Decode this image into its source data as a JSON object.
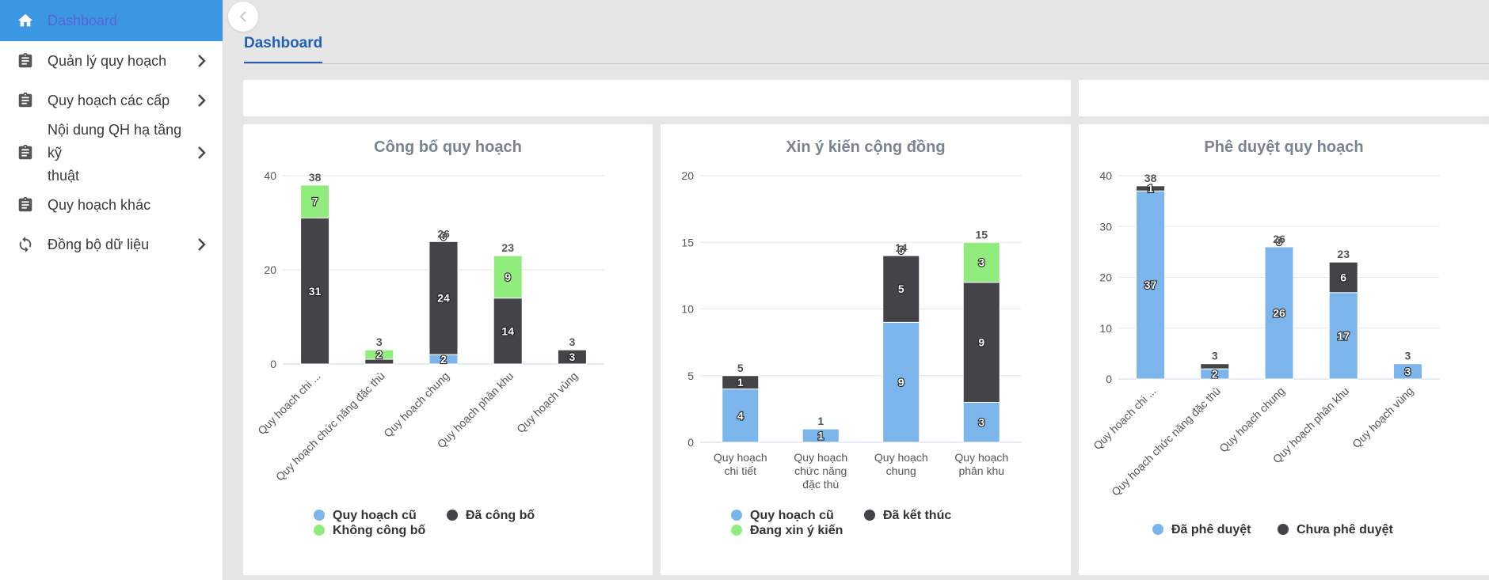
{
  "sidebar": {
    "items": [
      {
        "label": "Dashboard",
        "icon": "home-icon"
      },
      {
        "label": "Quản lý quy hoạch",
        "icon": "clipboard-icon"
      },
      {
        "label": "Quy hoạch các cấp",
        "icon": "clipboard-icon"
      },
      {
        "label_line1": "Nội dung QH hạ tầng kỹ",
        "label_line2": "thuật",
        "icon": "clipboard-icon"
      },
      {
        "label": "Quy hoạch khác",
        "icon": "clipboard-icon"
      },
      {
        "label": "Đồng bộ dữ liệu",
        "icon": "sync-icon"
      }
    ]
  },
  "header": {
    "tab": "Dashboard"
  },
  "colors": {
    "blue": "#7cb5ec",
    "dark": "#434348",
    "green": "#90ed7d",
    "accent": "#1f5fb8",
    "sidebar_active": "#3b97e3"
  },
  "chart_data": [
    {
      "type": "bar",
      "stacked": true,
      "title": "Công bố quy hoạch",
      "categories": [
        "Quy hoạch chi ...",
        "Quy hoạch chức năng đặc thù",
        "Quy hoạch chung",
        "Quy hoạch phân khu",
        "Quy hoạch vùng"
      ],
      "ylim": [
        0,
        40
      ],
      "yticks": [
        0,
        20,
        40
      ],
      "series": [
        {
          "name": "Quy hoạch cũ",
          "values": [
            0,
            0,
            2,
            0,
            0
          ]
        },
        {
          "name": "Đã công bố",
          "values": [
            31,
            1,
            24,
            14,
            3
          ]
        },
        {
          "name": "Không công bố",
          "values": [
            7,
            2,
            0,
            9,
            0
          ]
        }
      ],
      "segment_labels": [
        [
          "",
          "31",
          "7"
        ],
        [
          "",
          "",
          "2"
        ],
        [
          "2",
          "24",
          "0"
        ],
        [
          "",
          "14",
          "9"
        ],
        [
          "",
          "3",
          ""
        ]
      ],
      "totals": [
        38,
        3,
        26,
        23,
        3
      ],
      "legend_placement": "bottom"
    },
    {
      "type": "bar",
      "stacked": true,
      "title": "Xin ý kiến cộng đồng",
      "categories": [
        "Quy hoạch chi tiết",
        "Quy hoạch chức năng đặc thù",
        "Quy hoạch chung",
        "Quy hoạch phân khu"
      ],
      "category_lines": [
        [
          "Quy hoạch",
          "chi tiết"
        ],
        [
          "Quy hoạch",
          "chức năng",
          "đặc thù"
        ],
        [
          "Quy hoạch",
          "chung"
        ],
        [
          "Quy hoạch",
          "phân khu"
        ]
      ],
      "ylim": [
        0,
        20
      ],
      "yticks": [
        0,
        5,
        10,
        15,
        20
      ],
      "series": [
        {
          "name": "Quy hoạch cũ",
          "values": [
            4,
            1,
            9,
            3
          ]
        },
        {
          "name": "Đã kết thúc",
          "values": [
            1,
            0,
            5,
            9
          ]
        },
        {
          "name": "Đang xin ý kiến",
          "values": [
            0,
            0,
            0,
            3
          ]
        }
      ],
      "segment_labels": [
        [
          "4",
          "1",
          ""
        ],
        [
          "1",
          "",
          ""
        ],
        [
          "9",
          "5",
          "0"
        ],
        [
          "3",
          "9",
          "3"
        ]
      ],
      "totals": [
        5,
        1,
        14,
        15
      ],
      "legend_placement": "bottom"
    },
    {
      "type": "bar",
      "stacked": true,
      "title": "Phê duyệt quy hoạch",
      "categories": [
        "Quy hoạch chi ...",
        "Quy hoạch chức năng đặc thù",
        "Quy hoạch chung",
        "Quy hoạch phân khu",
        "Quy hoạch vùng"
      ],
      "ylim": [
        0,
        40
      ],
      "yticks": [
        0,
        10,
        20,
        30,
        40
      ],
      "series": [
        {
          "name": "Đã phê duyệt",
          "values": [
            37,
            2,
            26,
            17,
            3
          ]
        },
        {
          "name": "Chưa phê duyệt",
          "values": [
            1,
            1,
            0,
            6,
            0
          ]
        }
      ],
      "segment_labels": [
        [
          "37",
          "1"
        ],
        [
          "2",
          ""
        ],
        [
          "26",
          "0"
        ],
        [
          "17",
          "6"
        ],
        [
          "3",
          ""
        ]
      ],
      "totals": [
        38,
        3,
        26,
        23,
        3
      ],
      "legend_placement": "bottom"
    }
  ]
}
